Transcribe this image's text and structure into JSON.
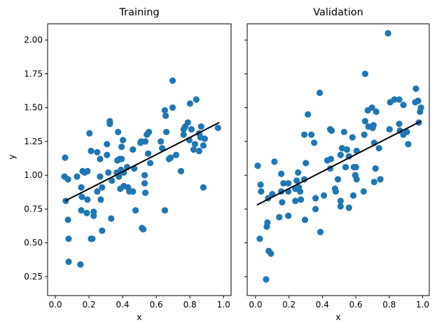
{
  "chart_data": [
    {
      "type": "scatter",
      "title": "Training",
      "xlabel": "x",
      "ylabel": "y",
      "xlim": [
        -0.046,
        1.045
      ],
      "ylim": [
        0.11,
        2.12
      ],
      "xticks": [
        0.0,
        0.2,
        0.4,
        0.6,
        0.8,
        1.0
      ],
      "xtick_labels": [
        "0.0",
        "0.2",
        "0.4",
        "0.6",
        "0.8",
        "1.0"
      ],
      "yticks": [
        0.25,
        0.5,
        0.75,
        1.0,
        1.25,
        1.5,
        1.75,
        2.0
      ],
      "ytick_labels": [
        "0.25",
        "0.50",
        "0.75",
        "1.00",
        "1.25",
        "1.50",
        "1.75",
        "2.00"
      ],
      "grid": false,
      "marker_color": "#1f77b4",
      "fit_line": {
        "color": "#000000",
        "x": [
          0.058,
          0.975
        ],
        "y": [
          0.81,
          1.39
        ]
      },
      "points": [
        [
          0.058,
          1.13
        ],
        [
          0.054,
          0.99
        ],
        [
          0.075,
          0.97
        ],
        [
          0.062,
          0.81
        ],
        [
          0.075,
          0.67
        ],
        [
          0.079,
          0.53
        ],
        [
          0.079,
          0.36
        ],
        [
          0.149,
          0.34
        ],
        [
          0.129,
          0.99
        ],
        [
          0.154,
          0.91
        ],
        [
          0.158,
          0.84
        ],
        [
          0.154,
          0.74
        ],
        [
          0.162,
          1.03
        ],
        [
          0.174,
          1.02
        ],
        [
          0.191,
          1.03
        ],
        [
          0.187,
          0.72
        ],
        [
          0.191,
          0.82
        ],
        [
          0.203,
          1.31
        ],
        [
          0.212,
          1.18
        ],
        [
          0.228,
          0.73
        ],
        [
          0.228,
          0.7
        ],
        [
          0.212,
          0.53
        ],
        [
          0.22,
          0.53
        ],
        [
          0.249,
          1.17
        ],
        [
          0.266,
          1.12
        ],
        [
          0.266,
          0.99
        ],
        [
          0.249,
          0.88
        ],
        [
          0.278,
          0.91
        ],
        [
          0.27,
          0.82
        ],
        [
          0.278,
          0.59
        ],
        [
          0.307,
          1.23
        ],
        [
          0.307,
          1.15
        ],
        [
          0.324,
          1.4
        ],
        [
          0.324,
          1.38
        ],
        [
          0.315,
          1.02
        ],
        [
          0.336,
          0.96
        ],
        [
          0.332,
          0.68
        ],
        [
          0.373,
          1.32
        ],
        [
          0.402,
          1.26
        ],
        [
          0.394,
          1.21
        ],
        [
          0.369,
          1.11
        ],
        [
          0.394,
          1.12
        ],
        [
          0.382,
          1.12
        ],
        [
          0.365,
          1.02
        ],
        [
          0.378,
          0.99
        ],
        [
          0.39,
          1.04
        ],
        [
          0.407,
          1.02
        ],
        [
          0.386,
          0.9
        ],
        [
          0.407,
          0.92
        ],
        [
          0.432,
          0.91
        ],
        [
          0.44,
          0.88
        ],
        [
          0.461,
          0.88
        ],
        [
          0.427,
          1.06
        ],
        [
          0.469,
          1.05
        ],
        [
          0.461,
          1.19
        ],
        [
          0.506,
          1.24
        ],
        [
          0.477,
          0.74
        ],
        [
          0.515,
          0.61
        ],
        [
          0.697,
          1.7
        ],
        [
          0.801,
          1.53
        ],
        [
          0.838,
          1.56
        ],
        [
          0.697,
          1.5
        ],
        [
          0.651,
          1.48
        ],
        [
          0.656,
          1.44
        ],
        [
          0.788,
          1.39
        ],
        [
          0.772,
          1.36
        ],
        [
          0.763,
          1.34
        ],
        [
          0.809,
          1.34
        ],
        [
          0.867,
          1.36
        ],
        [
          0.967,
          1.35
        ],
        [
          0.763,
          1.3
        ],
        [
          0.855,
          1.31
        ],
        [
          0.863,
          1.28
        ],
        [
          0.888,
          1.27
        ],
        [
          0.797,
          1.26
        ],
        [
          0.83,
          1.23
        ],
        [
          0.88,
          1.22
        ],
        [
          0.822,
          1.19
        ],
        [
          0.855,
          1.18
        ],
        [
          0.66,
          1.32
        ],
        [
          0.556,
          1.32
        ],
        [
          0.544,
          1.3
        ],
        [
          0.51,
          1.25
        ],
        [
          0.535,
          1.25
        ],
        [
          0.627,
          1.25
        ],
        [
          0.635,
          1.2
        ],
        [
          0.552,
          1.16
        ],
        [
          0.564,
          1.09
        ],
        [
          0.676,
          1.12
        ],
        [
          0.685,
          1.13
        ],
        [
          0.718,
          1.15
        ],
        [
          0.747,
          1.03
        ],
        [
          0.531,
          1.0
        ],
        [
          0.531,
          0.94
        ],
        [
          0.535,
          0.87
        ],
        [
          0.651,
          0.74
        ],
        [
          0.88,
          0.91
        ],
        [
          0.523,
          0.6
        ]
      ]
    },
    {
      "type": "scatter",
      "title": "Validation",
      "xlabel": "x",
      "ylabel": "",
      "xlim": [
        -0.05,
        1.04
      ],
      "ylim": [
        0.11,
        2.12
      ],
      "xticks": [
        0.0,
        0.2,
        0.4,
        0.6,
        0.8,
        1.0
      ],
      "xtick_labels": [
        "0.0",
        "0.2",
        "0.4",
        "0.6",
        "0.8",
        "1.0"
      ],
      "yticks": [
        0.25,
        0.5,
        0.75,
        1.0,
        1.25,
        1.5,
        1.75,
        2.0
      ],
      "ytick_labels": [],
      "grid": false,
      "marker_color": "#1f77b4",
      "fit_line": {
        "color": "#000000",
        "x": [
          0.008,
          0.99
        ],
        "y": [
          0.78,
          1.4
        ]
      },
      "points": [
        [
          0.013,
          1.07
        ],
        [
          0.03,
          0.93
        ],
        [
          0.033,
          0.88
        ],
        [
          0.075,
          0.83
        ],
        [
          0.1,
          0.86
        ],
        [
          0.025,
          0.53
        ],
        [
          0.071,
          0.65
        ],
        [
          0.067,
          0.62
        ],
        [
          0.079,
          0.44
        ],
        [
          0.092,
          0.42
        ],
        [
          0.063,
          0.23
        ],
        [
          0.113,
          1.1
        ],
        [
          0.154,
          1.01
        ],
        [
          0.167,
          0.94
        ],
        [
          0.196,
          0.94
        ],
        [
          0.154,
          0.88
        ],
        [
          0.196,
          0.88
        ],
        [
          0.159,
          0.8
        ],
        [
          0.142,
          0.69
        ],
        [
          0.196,
          0.7
        ],
        [
          0.255,
          1.02
        ],
        [
          0.246,
          0.96
        ],
        [
          0.259,
          0.91
        ],
        [
          0.238,
          0.9
        ],
        [
          0.267,
          0.88
        ],
        [
          0.238,
          0.81
        ],
        [
          0.271,
          0.82
        ],
        [
          0.296,
          0.67
        ],
        [
          0.292,
          0.97
        ],
        [
          0.301,
          1.09
        ],
        [
          0.292,
          1.3
        ],
        [
          0.334,
          1.3
        ],
        [
          0.351,
          1.24
        ],
        [
          0.313,
          1.45
        ],
        [
          0.384,
          1.61
        ],
        [
          0.359,
          0.83
        ],
        [
          0.359,
          0.75
        ],
        [
          0.409,
          0.85
        ],
        [
          0.388,
          0.58
        ],
        [
          0.43,
          1.11
        ],
        [
          0.451,
          1.12
        ],
        [
          0.447,
          1.05
        ],
        [
          0.447,
          1.34
        ],
        [
          0.455,
          1.33
        ],
        [
          0.793,
          2.05
        ],
        [
          0.656,
          1.75
        ],
        [
          0.96,
          1.64
        ],
        [
          0.806,
          1.54
        ],
        [
          0.831,
          1.56
        ],
        [
          0.86,
          1.56
        ],
        [
          0.885,
          1.52
        ],
        [
          0.956,
          1.54
        ],
        [
          0.973,
          1.55
        ],
        [
          0.99,
          1.5
        ],
        [
          0.985,
          1.47
        ],
        [
          0.977,
          1.39
        ],
        [
          0.672,
          1.48
        ],
        [
          0.697,
          1.5
        ],
        [
          0.722,
          1.47
        ],
        [
          0.656,
          1.4
        ],
        [
          0.676,
          1.36
        ],
        [
          0.706,
          1.37
        ],
        [
          0.701,
          1.35
        ],
        [
          0.651,
          1.3
        ],
        [
          0.58,
          1.28
        ],
        [
          0.53,
          1.32
        ],
        [
          0.802,
          1.34
        ],
        [
          0.86,
          1.38
        ],
        [
          0.864,
          1.33
        ],
        [
          0.885,
          1.3
        ],
        [
          0.906,
          1.32
        ],
        [
          0.914,
          1.23
        ],
        [
          0.71,
          1.24
        ],
        [
          0.739,
          1.2
        ],
        [
          0.518,
          1.2
        ],
        [
          0.547,
          1.19
        ],
        [
          0.605,
          1.18
        ],
        [
          0.509,
          1.15
        ],
        [
          0.559,
          1.14
        ],
        [
          0.539,
          1.06
        ],
        [
          0.589,
          1.06
        ],
        [
          0.601,
          1.06
        ],
        [
          0.718,
          1.05
        ],
        [
          0.597,
          1.0
        ],
        [
          0.605,
          0.97
        ],
        [
          0.493,
          0.97
        ],
        [
          0.71,
          0.95
        ],
        [
          0.747,
          0.97
        ],
        [
          0.476,
          0.9
        ],
        [
          0.48,
          0.88
        ],
        [
          0.585,
          0.85
        ],
        [
          0.647,
          0.88
        ],
        [
          0.509,
          0.81
        ],
        [
          0.509,
          0.77
        ],
        [
          0.559,
          0.76
        ]
      ]
    }
  ]
}
